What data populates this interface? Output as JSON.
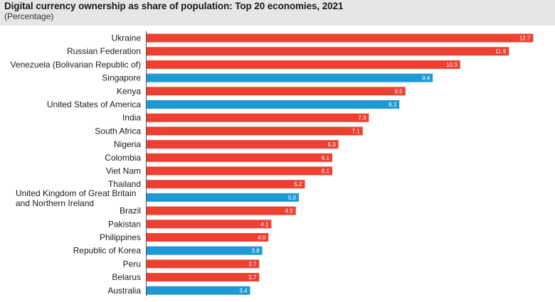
{
  "chart_data": {
    "type": "bar",
    "orientation": "horizontal",
    "title": "Digital currency ownership as share of population: Top 20 economies, 2021",
    "subtitle": "(Percentage)",
    "categories": [
      "Ukraine",
      "Russian Federation",
      "Venezuela (Bolivarian Republic of)",
      "Singapore",
      "Kenya",
      "United States of America",
      "India",
      "South Africa",
      "Nigeria",
      "Colombia",
      "Viet Nam",
      "Thailand",
      "United Kingdom of Great Britain and Northern Ireland",
      "Brazil",
      "Pakistan",
      "Philippines",
      "Republic of Korea",
      "Peru",
      "Belarus",
      "Australia"
    ],
    "values": [
      12.7,
      11.9,
      10.3,
      9.4,
      8.5,
      8.3,
      7.3,
      7.1,
      6.3,
      6.1,
      6.1,
      5.2,
      5.0,
      4.9,
      4.1,
      4.0,
      3.8,
      3.7,
      3.7,
      3.4
    ],
    "value_labels": [
      "12.7",
      "11.9",
      "10.3",
      "9.4",
      "8.5",
      "8.3",
      "7.3",
      "7.1",
      "6.3",
      "6.1",
      "6.1",
      "5.2",
      "5.0",
      "4.9",
      "4.1",
      "4.0",
      "3.8",
      "3.7",
      "3.7",
      "3.4"
    ],
    "bar_colors": [
      "red",
      "red",
      "red",
      "blue",
      "red",
      "blue",
      "red",
      "red",
      "red",
      "red",
      "red",
      "red",
      "blue",
      "red",
      "red",
      "red",
      "blue",
      "red",
      "red",
      "blue"
    ],
    "colors": {
      "red": "#ee4031",
      "blue": "#1d9ad6"
    },
    "xlim": [
      0,
      12.9
    ],
    "grid": false,
    "legend": "none"
  }
}
